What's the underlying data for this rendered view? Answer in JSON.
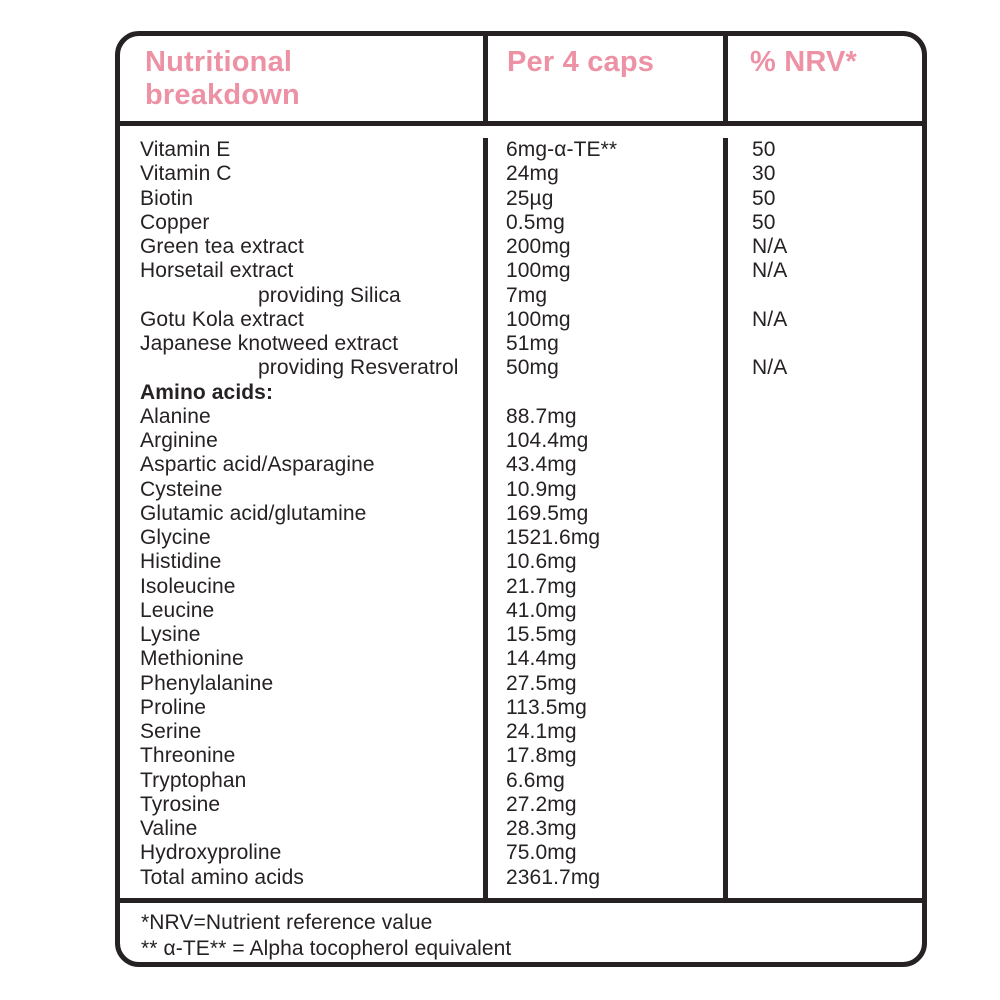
{
  "colors": {
    "accent_pink": "#ed91a5",
    "ink": "#262223",
    "background": "#ffffff"
  },
  "table": {
    "header": {
      "column1": "Nutritional breakdown",
      "column2": "Per 4 caps",
      "column3": "% NRV*"
    },
    "rows": [
      {
        "label": "Vitamin E",
        "indent": false,
        "bold": false,
        "value": "6mg-α-TE**",
        "nrv": "50"
      },
      {
        "label": "Vitamin C",
        "indent": false,
        "bold": false,
        "value": "24mg",
        "nrv": "30"
      },
      {
        "label": "Biotin",
        "indent": false,
        "bold": false,
        "value": "25µg",
        "nrv": "50"
      },
      {
        "label": "Copper",
        "indent": false,
        "bold": false,
        "value": "0.5mg",
        "nrv": "50"
      },
      {
        "label": "Green tea extract",
        "indent": false,
        "bold": false,
        "value": "200mg",
        "nrv": "N/A"
      },
      {
        "label": "Horsetail extract",
        "indent": false,
        "bold": false,
        "value": "100mg",
        "nrv": "N/A"
      },
      {
        "label": "providing Silica",
        "indent": true,
        "bold": false,
        "value": "7mg",
        "nrv": ""
      },
      {
        "label": "Gotu Kola extract",
        "indent": false,
        "bold": false,
        "value": "100mg",
        "nrv": "N/A"
      },
      {
        "label": "Japanese knotweed extract",
        "indent": false,
        "bold": false,
        "value": "51mg",
        "nrv": ""
      },
      {
        "label": "providing Resveratrol",
        "indent": true,
        "bold": false,
        "value": "50mg",
        "nrv": "N/A"
      },
      {
        "label": "Amino acids:",
        "indent": false,
        "bold": true,
        "value": "",
        "nrv": ""
      },
      {
        "label": "Alanine",
        "indent": false,
        "bold": false,
        "value": "88.7mg",
        "nrv": ""
      },
      {
        "label": "Arginine",
        "indent": false,
        "bold": false,
        "value": "104.4mg",
        "nrv": ""
      },
      {
        "label": "Aspartic acid/Asparagine",
        "indent": false,
        "bold": false,
        "value": "43.4mg",
        "nrv": ""
      },
      {
        "label": "Cysteine",
        "indent": false,
        "bold": false,
        "value": "10.9mg",
        "nrv": ""
      },
      {
        "label": "Glutamic acid/glutamine",
        "indent": false,
        "bold": false,
        "value": "169.5mg",
        "nrv": ""
      },
      {
        "label": "Glycine",
        "indent": false,
        "bold": false,
        "value": "1521.6mg",
        "nrv": ""
      },
      {
        "label": "Histidine",
        "indent": false,
        "bold": false,
        "value": "10.6mg",
        "nrv": ""
      },
      {
        "label": "Isoleucine",
        "indent": false,
        "bold": false,
        "value": "21.7mg",
        "nrv": ""
      },
      {
        "label": "Leucine",
        "indent": false,
        "bold": false,
        "value": "41.0mg",
        "nrv": ""
      },
      {
        "label": "Lysine",
        "indent": false,
        "bold": false,
        "value": "15.5mg",
        "nrv": ""
      },
      {
        "label": "Methionine",
        "indent": false,
        "bold": false,
        "value": "14.4mg",
        "nrv": ""
      },
      {
        "label": "Phenylalanine",
        "indent": false,
        "bold": false,
        "value": "27.5mg",
        "nrv": ""
      },
      {
        "label": "Proline",
        "indent": false,
        "bold": false,
        "value": "113.5mg",
        "nrv": ""
      },
      {
        "label": "Serine",
        "indent": false,
        "bold": false,
        "value": "24.1mg",
        "nrv": ""
      },
      {
        "label": "Threonine",
        "indent": false,
        "bold": false,
        "value": "17.8mg",
        "nrv": ""
      },
      {
        "label": "Tryptophan",
        "indent": false,
        "bold": false,
        "value": "6.6mg",
        "nrv": ""
      },
      {
        "label": "Tyrosine",
        "indent": false,
        "bold": false,
        "value": "27.2mg",
        "nrv": ""
      },
      {
        "label": "Valine",
        "indent": false,
        "bold": false,
        "value": "28.3mg",
        "nrv": ""
      },
      {
        "label": "Hydroxyproline",
        "indent": false,
        "bold": false,
        "value": "75.0mg",
        "nrv": ""
      },
      {
        "label": "Total amino acids",
        "indent": false,
        "bold": false,
        "value": "2361.7mg",
        "nrv": ""
      }
    ],
    "footnotes": [
      "*NRV=Nutrient reference value",
      "** α-TE** = Alpha tocopherol equivalent"
    ]
  }
}
